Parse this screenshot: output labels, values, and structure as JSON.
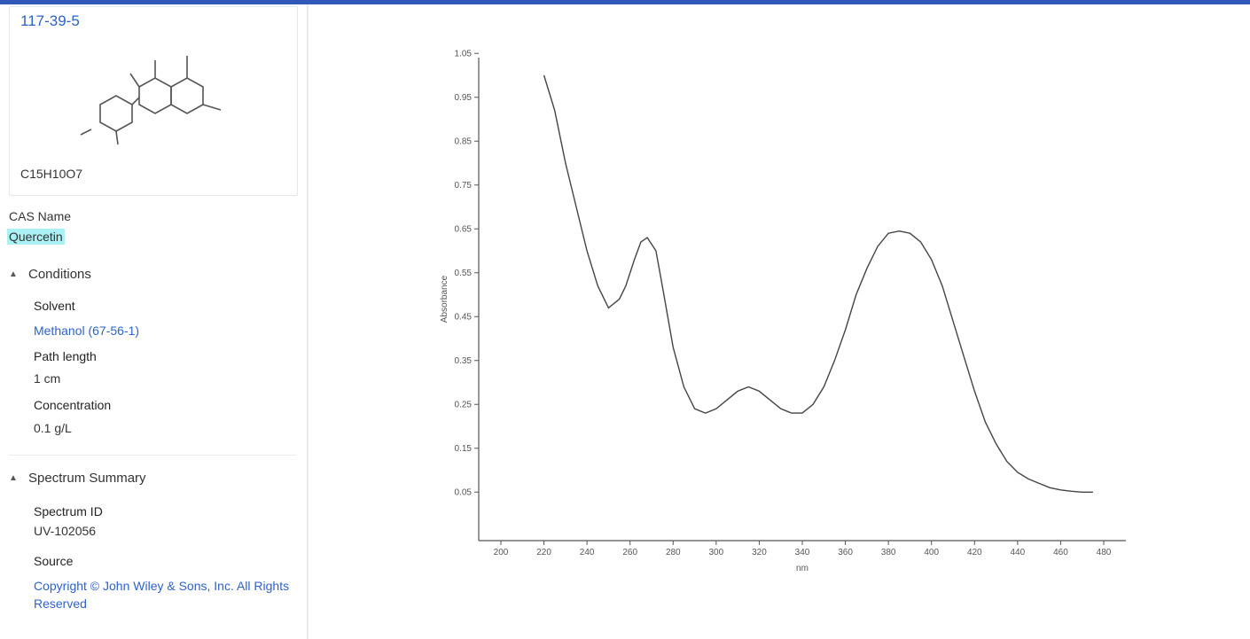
{
  "compound": {
    "cas": "117-39-5",
    "formula": "C15H10O7",
    "name_label": "CAS Name",
    "name_value": "Quercetin"
  },
  "conditions": {
    "heading": "Conditions",
    "solvent_label": "Solvent",
    "solvent_value": "Methanol (67-56-1)",
    "pathlength_label": "Path length",
    "pathlength_value": "1 cm",
    "concentration_label": "Concentration",
    "concentration_value": "0.1 g/L"
  },
  "summary": {
    "heading": "Spectrum Summary",
    "id_label": "Spectrum ID",
    "id_value": "UV-102056",
    "source_label": "Source",
    "source_value": "Copyright © John Wiley & Sons, Inc. All Rights Reserved"
  },
  "chart_data": {
    "type": "line",
    "title": "",
    "xlabel": "nm",
    "ylabel": "Absorbance",
    "xlim": [
      200,
      480
    ],
    "ylim": [
      0,
      1
    ],
    "xticks": [
      200,
      220,
      240,
      260,
      280,
      300,
      320,
      340,
      360,
      380,
      400,
      420,
      440,
      460,
      480
    ],
    "yticks": [
      0.05,
      0.15,
      0.25,
      0.35,
      0.45,
      0.55,
      0.65,
      0.75,
      0.85,
      0.95,
      1.05
    ],
    "grid": false,
    "series": [
      {
        "x": [
          220,
          225,
          230,
          235,
          240,
          245,
          250,
          255,
          258,
          262,
          265,
          268,
          272,
          275,
          280,
          285,
          290,
          295,
          300,
          305,
          310,
          315,
          320,
          325,
          330,
          335,
          340,
          345,
          350,
          355,
          360,
          365,
          370,
          375,
          380,
          385,
          390,
          395,
          400,
          405,
          410,
          415,
          420,
          425,
          430,
          435,
          440,
          445,
          450,
          455,
          460,
          465,
          470,
          475
        ],
        "y": [
          1.0,
          0.92,
          0.8,
          0.7,
          0.6,
          0.52,
          0.47,
          0.49,
          0.52,
          0.58,
          0.62,
          0.63,
          0.6,
          0.52,
          0.38,
          0.29,
          0.24,
          0.23,
          0.24,
          0.26,
          0.28,
          0.29,
          0.28,
          0.26,
          0.24,
          0.23,
          0.23,
          0.25,
          0.29,
          0.35,
          0.42,
          0.5,
          0.56,
          0.61,
          0.64,
          0.645,
          0.64,
          0.62,
          0.58,
          0.52,
          0.44,
          0.36,
          0.28,
          0.21,
          0.16,
          0.12,
          0.095,
          0.08,
          0.07,
          0.06,
          0.055,
          0.052,
          0.05,
          0.05
        ]
      }
    ]
  }
}
